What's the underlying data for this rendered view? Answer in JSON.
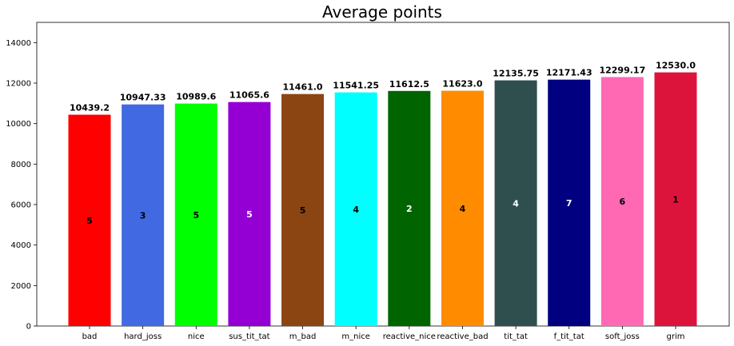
{
  "chart_data": {
    "type": "bar",
    "title": "Average points",
    "xlabel": "",
    "ylabel": "",
    "ylim": [
      0,
      15000
    ],
    "yticks": [
      0,
      2000,
      4000,
      6000,
      8000,
      10000,
      12000,
      14000
    ],
    "grid": false,
    "categories": [
      "bad",
      "hard_joss",
      "nice",
      "sus_tit_tat",
      "m_bad",
      "m_nice",
      "reactive_nice",
      "reactive_bad",
      "tit_tat",
      "f_tit_tat",
      "soft_joss",
      "grim"
    ],
    "values": [
      10439.2,
      10947.33,
      10989.6,
      11065.6,
      11461.0,
      11541.25,
      11612.5,
      11623.0,
      12135.75,
      12171.43,
      12299.17,
      12530.0
    ],
    "value_labels": [
      "10439.2",
      "10947.33",
      "10989.6",
      "11065.6",
      "11461.0",
      "11541.25",
      "11612.5",
      "11623.0",
      "12135.75",
      "12171.43",
      "12299.17",
      "12530.0"
    ],
    "counts": [
      "5",
      "3",
      "5",
      "5",
      "5",
      "4",
      "2",
      "4",
      "4",
      "7",
      "6",
      "1"
    ],
    "colors": [
      "#ff0000",
      "#4169e1",
      "#00ff00",
      "#9400d3",
      "#8b4513",
      "#00ffff",
      "#006400",
      "#ff8c00",
      "#2f4f4f",
      "#000080",
      "#ff69b4",
      "#dc143c"
    ],
    "count_colors": [
      "#000000",
      "#000000",
      "#000000",
      "#ffffff",
      "#000000",
      "#000000",
      "#ffffff",
      "#000000",
      "#ffffff",
      "#ffffff",
      "#000000",
      "#000000"
    ]
  }
}
